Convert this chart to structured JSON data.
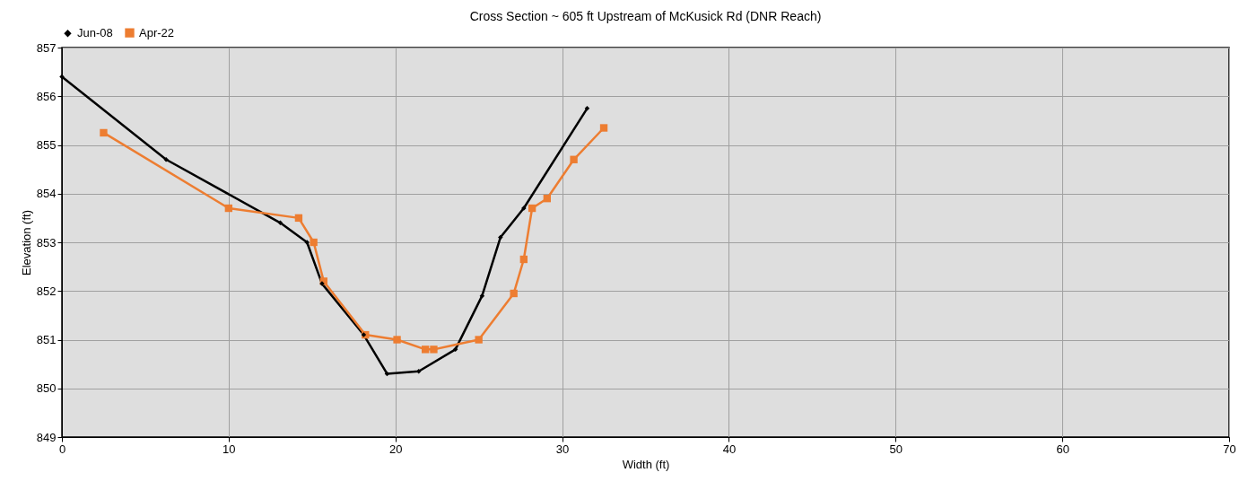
{
  "chart_data": {
    "type": "line",
    "title": "Cross Section ~ 605 ft Upstream of McKusick Rd (DNR Reach)",
    "xlabel": "Width (ft)",
    "ylabel": "Elevation (ft)",
    "xlim": [
      0,
      70
    ],
    "xticks": [
      0,
      10,
      20,
      30,
      40,
      50,
      60,
      70
    ],
    "ylim": [
      849,
      857
    ],
    "yticks": [
      849,
      850,
      851,
      852,
      853,
      854,
      855,
      856,
      857
    ],
    "grid": true,
    "legend": "top",
    "series": [
      {
        "name": "Jun-08",
        "color": "#000000",
        "marker": "diamond",
        "x": [
          0,
          6.25,
          13.1,
          14.7,
          15.6,
          18.1,
          19.5,
          21.4,
          23.6,
          25.2,
          26.3,
          27.7,
          31.5
        ],
        "values": [
          856.4,
          854.7,
          853.4,
          853.0,
          852.15,
          851.1,
          850.3,
          850.35,
          850.8,
          851.9,
          853.1,
          853.7,
          855.75
        ]
      },
      {
        "name": "Apr-22",
        "color": "#ed7d31",
        "marker": "square",
        "x": [
          2.5,
          10.0,
          14.2,
          15.1,
          15.7,
          18.2,
          20.1,
          21.8,
          22.3,
          25.0,
          27.1,
          27.7,
          28.2,
          29.1,
          30.7,
          32.5
        ],
        "values": [
          855.25,
          853.7,
          853.5,
          853.0,
          852.2,
          851.1,
          851.0,
          850.8,
          850.8,
          851.0,
          851.95,
          852.65,
          853.7,
          853.9,
          854.7,
          855.35
        ]
      }
    ]
  }
}
